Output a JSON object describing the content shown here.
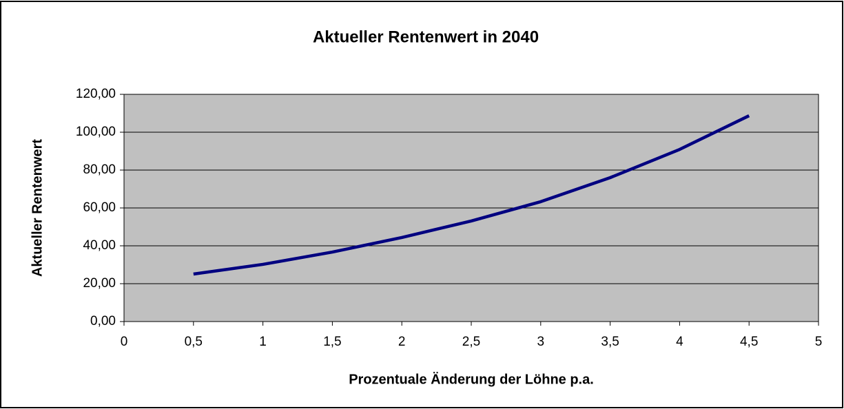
{
  "chart_data": {
    "type": "line",
    "title": "Aktueller Rentenwert in 2040",
    "x_label": "Prozentuale Änderung der Löhne p.a.",
    "y_label": "Aktueller Rentenwert",
    "x": [
      0.5,
      1,
      1.5,
      2,
      2.5,
      3,
      3.5,
      4,
      4.5
    ],
    "series": [
      {
        "name": "Aktueller Rentenwert",
        "color": "#000080",
        "values": [
          25.1,
          30.2,
          36.7,
          44.4,
          53.1,
          63.3,
          76.0,
          90.9,
          108.7
        ]
      }
    ],
    "xlim": [
      0,
      5
    ],
    "xticks": [
      0,
      {
        "value": 0.5,
        "label": "0,5"
      },
      1,
      {
        "value": 1.5,
        "label": "1,5"
      },
      2,
      {
        "value": 2.5,
        "label": "2,5"
      },
      3,
      {
        "value": 3.5,
        "label": "3,5"
      },
      4,
      {
        "value": 4.5,
        "label": "4,5"
      },
      5
    ],
    "ylim": [
      0,
      120
    ],
    "yticks": [
      {
        "value": 0,
        "label": "0,00"
      },
      {
        "value": 20,
        "label": "20,00"
      },
      {
        "value": 40,
        "label": "40,00"
      },
      {
        "value": 60,
        "label": "60,00"
      },
      {
        "value": 80,
        "label": "80,00"
      },
      {
        "value": 100,
        "label": "100,00"
      },
      {
        "value": 120,
        "label": "120,00"
      }
    ],
    "grid": true,
    "plot_background": "#c0c0c0"
  }
}
